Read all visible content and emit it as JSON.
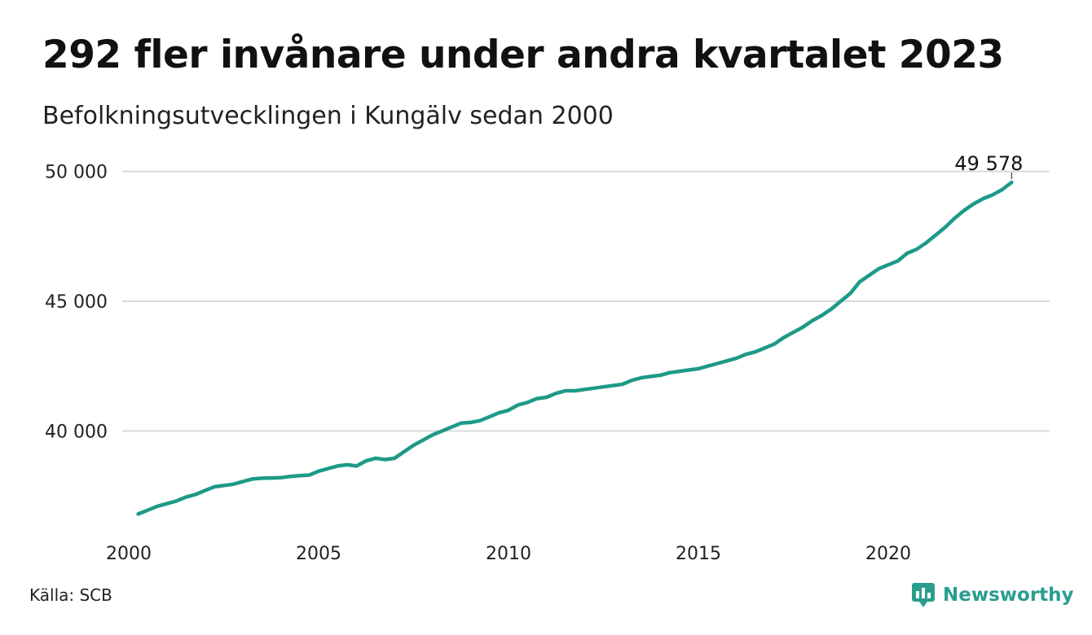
{
  "title": "292 fler invånare under andra kvartalet 2023",
  "subtitle": "Befolkningsutvecklingen i Kungälv sedan 2000",
  "source": "Källa: SCB",
  "brand": {
    "name": "Newsworthy",
    "icon": "bar-chart-speech-bubble-icon",
    "color": "#2a9d8f"
  },
  "chart_data": {
    "type": "line",
    "line_color": "#1d9a87",
    "grid": true,
    "xlim": [
      2000,
      2024.25
    ],
    "ylim": [
      36500,
      50300
    ],
    "xticks": [
      2000,
      2005,
      2010,
      2015,
      2020
    ],
    "xtick_labels": [
      "2000",
      "2005",
      "2010",
      "2015",
      "2020"
    ],
    "yticks": [
      40000,
      45000,
      50000
    ],
    "ytick_labels": [
      "40 000",
      "45 000",
      "50 000"
    ],
    "end_label": "49 578",
    "series": [
      {
        "x": [
          2000.25,
          2000.5,
          2000.75,
          2001.0,
          2001.25,
          2001.5,
          2001.75,
          2002.0,
          2002.25,
          2002.5,
          2002.75,
          2003.0,
          2003.25,
          2003.5,
          2003.75,
          2004.0,
          2004.25,
          2004.5,
          2004.75,
          2005.0,
          2005.25,
          2005.5,
          2005.75,
          2006.0,
          2006.25,
          2006.5,
          2006.75,
          2007.0,
          2007.25,
          2007.5,
          2007.75,
          2008.0,
          2008.25,
          2008.5,
          2008.75,
          2009.0,
          2009.25,
          2009.5,
          2009.75,
          2010.0,
          2010.25,
          2010.5,
          2010.75,
          2011.0,
          2011.25,
          2011.5,
          2011.75,
          2012.0,
          2012.25,
          2012.5,
          2012.75,
          2013.0,
          2013.25,
          2013.5,
          2013.75,
          2014.0,
          2014.25,
          2014.5,
          2014.75,
          2015.0,
          2015.25,
          2015.5,
          2015.75,
          2016.0,
          2016.25,
          2016.5,
          2016.75,
          2017.0,
          2017.25,
          2017.5,
          2017.75,
          2018.0,
          2018.25,
          2018.5,
          2018.75,
          2019.0,
          2019.25,
          2019.5,
          2019.75,
          2020.0,
          2020.25,
          2020.5,
          2020.75,
          2021.0,
          2021.25,
          2021.5,
          2021.75,
          2022.0,
          2022.25,
          2022.5,
          2022.75,
          2023.0,
          2023.25
        ],
        "y": [
          36800,
          36950,
          37100,
          37200,
          37300,
          37450,
          37550,
          37700,
          37850,
          37900,
          37950,
          38050,
          38150,
          38180,
          38190,
          38200,
          38250,
          38280,
          38300,
          38450,
          38550,
          38650,
          38700,
          38650,
          38850,
          38950,
          38900,
          38950,
          39200,
          39450,
          39650,
          39850,
          40000,
          40150,
          40300,
          40330,
          40400,
          40550,
          40700,
          40800,
          41000,
          41100,
          41250,
          41300,
          41450,
          41550,
          41550,
          41600,
          41650,
          41700,
          41750,
          41800,
          41950,
          42050,
          42100,
          42150,
          42250,
          42300,
          42350,
          42400,
          42500,
          42600,
          42700,
          42800,
          42950,
          43050,
          43200,
          43350,
          43600,
          43800,
          44000,
          44250,
          44450,
          44700,
          45000,
          45300,
          45750,
          46000,
          46250,
          46400,
          46550,
          46850,
          47000,
          47250,
          47550,
          47850,
          48200,
          48500,
          48750,
          48950,
          49100,
          49300,
          49578
        ]
      }
    ]
  }
}
